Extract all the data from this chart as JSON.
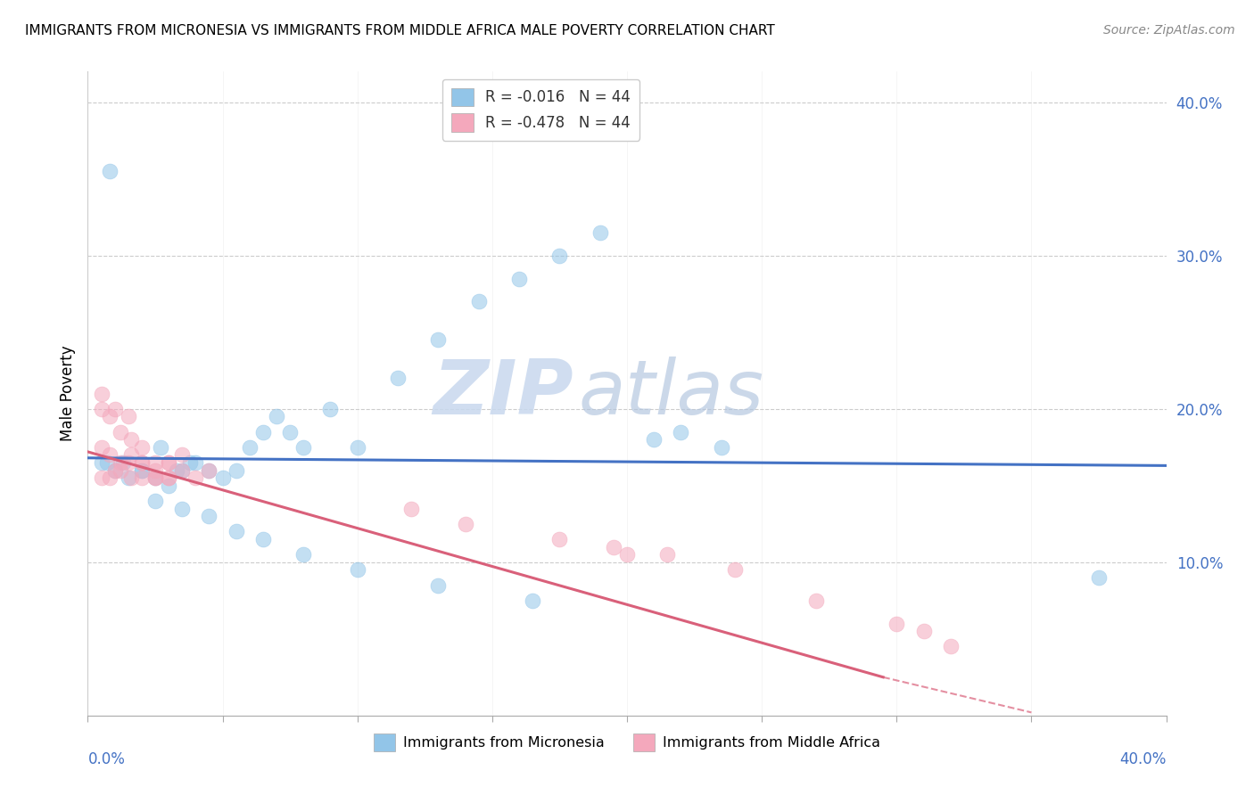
{
  "title": "IMMIGRANTS FROM MICRONESIA VS IMMIGRANTS FROM MIDDLE AFRICA MALE POVERTY CORRELATION CHART",
  "source": "Source: ZipAtlas.com",
  "ylabel": "Male Poverty",
  "xmin": 0.0,
  "xmax": 0.4,
  "ymin": 0.0,
  "ymax": 0.42,
  "legend_r1": "R = -0.016",
  "legend_n1": "N = 44",
  "legend_r2": "R = -0.478",
  "legend_n2": "N = 44",
  "color_micronesia": "#92C5E8",
  "color_middle_africa": "#F4A8BC",
  "color_line_micronesia": "#4472C4",
  "color_line_middle_africa": "#D9607A",
  "watermark_zip": "ZIP",
  "watermark_atlas": "atlas",
  "mic_x": [
    0.007,
    0.013,
    0.02,
    0.027,
    0.033,
    0.038,
    0.005,
    0.01,
    0.015,
    0.02,
    0.025,
    0.03,
    0.035,
    0.04,
    0.045,
    0.05,
    0.055,
    0.06,
    0.065,
    0.07,
    0.075,
    0.08,
    0.09,
    0.1,
    0.115,
    0.13,
    0.145,
    0.16,
    0.175,
    0.19,
    0.21,
    0.22,
    0.235,
    0.025,
    0.035,
    0.045,
    0.055,
    0.065,
    0.08,
    0.1,
    0.13,
    0.165,
    0.375,
    0.008
  ],
  "mic_y": [
    0.165,
    0.165,
    0.16,
    0.175,
    0.16,
    0.165,
    0.165,
    0.16,
    0.155,
    0.16,
    0.155,
    0.15,
    0.16,
    0.165,
    0.16,
    0.155,
    0.16,
    0.175,
    0.185,
    0.195,
    0.185,
    0.175,
    0.2,
    0.175,
    0.22,
    0.245,
    0.27,
    0.285,
    0.3,
    0.315,
    0.18,
    0.185,
    0.175,
    0.14,
    0.135,
    0.13,
    0.12,
    0.115,
    0.105,
    0.095,
    0.085,
    0.075,
    0.09,
    0.355
  ],
  "ma_x": [
    0.005,
    0.008,
    0.012,
    0.016,
    0.02,
    0.025,
    0.03,
    0.035,
    0.04,
    0.045,
    0.005,
    0.008,
    0.012,
    0.016,
    0.02,
    0.025,
    0.03,
    0.035,
    0.005,
    0.01,
    0.015,
    0.02,
    0.025,
    0.03,
    0.008,
    0.012,
    0.016,
    0.02,
    0.025,
    0.03,
    0.14,
    0.175,
    0.195,
    0.215,
    0.27,
    0.3,
    0.31,
    0.32,
    0.005,
    0.01,
    0.015,
    0.12,
    0.2,
    0.24
  ],
  "ma_y": [
    0.175,
    0.17,
    0.165,
    0.17,
    0.165,
    0.155,
    0.165,
    0.17,
    0.155,
    0.16,
    0.2,
    0.195,
    0.185,
    0.18,
    0.175,
    0.165,
    0.155,
    0.16,
    0.155,
    0.16,
    0.165,
    0.155,
    0.16,
    0.165,
    0.155,
    0.16,
    0.155,
    0.165,
    0.155,
    0.155,
    0.125,
    0.115,
    0.11,
    0.105,
    0.075,
    0.06,
    0.055,
    0.045,
    0.21,
    0.2,
    0.195,
    0.135,
    0.105,
    0.095
  ]
}
